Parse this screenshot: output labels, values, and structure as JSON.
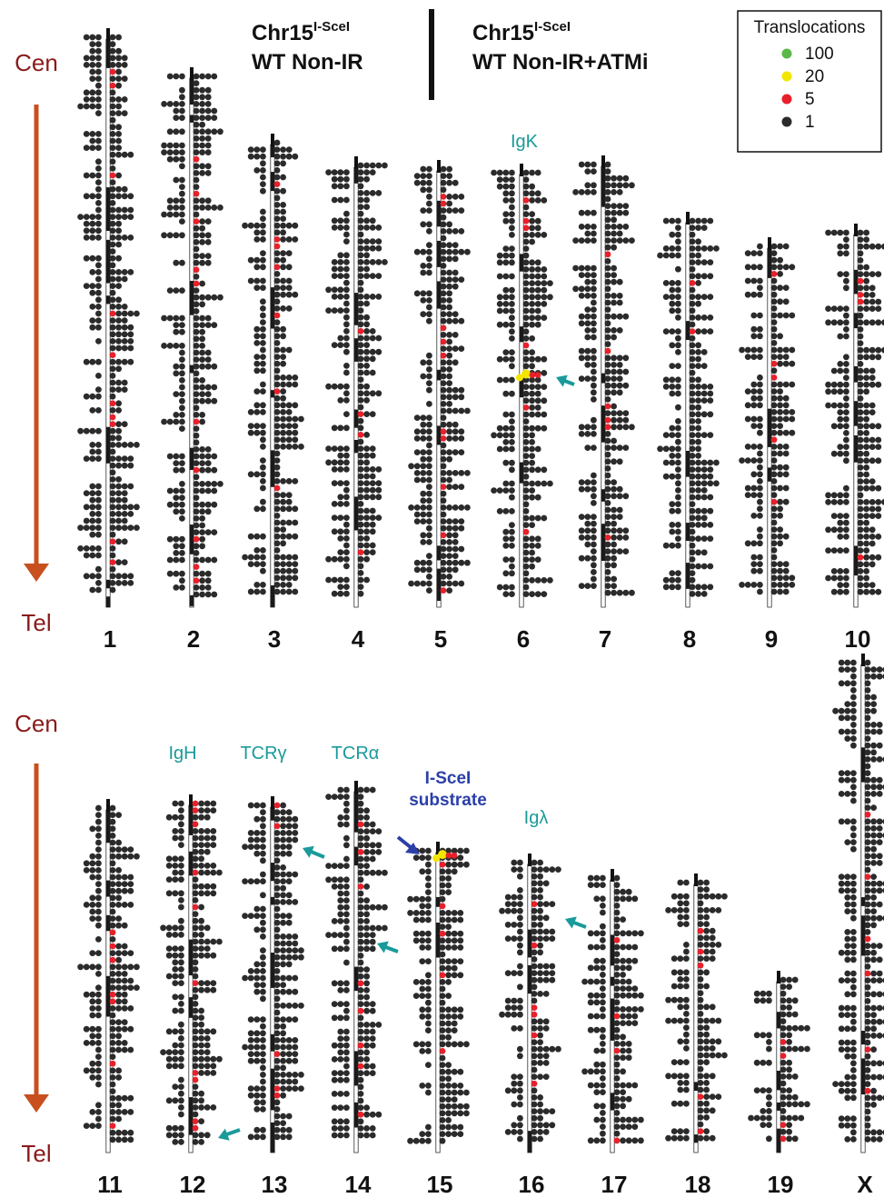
{
  "header": {
    "left": {
      "chr": "Chr15",
      "sup": "I-SceI",
      "line2": "WT Non-IR"
    },
    "right": {
      "chr": "Chr15",
      "sup": "I-SceI",
      "line2": "WT Non-IR+ATMi"
    }
  },
  "legend": {
    "title": "Translocations",
    "items": [
      {
        "label": "100",
        "color": "#5cb848"
      },
      {
        "label": "20",
        "color": "#f2e500"
      },
      {
        "label": "5",
        "color": "#e8202a"
      },
      {
        "label": "1",
        "color": "#2b2b2b"
      }
    ]
  },
  "axis": {
    "cen": "Cen",
    "tel": "Tel",
    "arrow_color": "#c8501e",
    "text_color": "#8b1a1a"
  },
  "annotation_color": "#1a9a9a",
  "marker_color": "#2b3fa8",
  "rows": [
    {
      "chromosomes": [
        {
          "label": "1",
          "len": 633
        },
        {
          "label": "2",
          "len": 590
        },
        {
          "label": "3",
          "len": 517
        },
        {
          "label": "4",
          "len": 492
        },
        {
          "label": "5",
          "len": 488
        },
        {
          "label": "6",
          "len": 484,
          "hotspot": {
            "color": "yellow",
            "at": 0.47
          }
        },
        {
          "label": "7",
          "len": 493
        },
        {
          "label": "8",
          "len": 431
        },
        {
          "label": "9",
          "len": 403
        },
        {
          "label": "10",
          "len": 418
        }
      ],
      "labels": [
        {
          "text": "IgK",
          "chrom": "6",
          "kind": "gene"
        }
      ]
    },
    {
      "chromosomes": [
        {
          "label": "11",
          "len": 385
        },
        {
          "label": "12",
          "len": 390
        },
        {
          "label": "13",
          "len": 388
        },
        {
          "label": "14",
          "len": 405
        },
        {
          "label": "15",
          "len": 338,
          "hotspot": {
            "color": "yellow",
            "at": 0.03
          }
        },
        {
          "label": "16",
          "len": 325
        },
        {
          "label": "17",
          "len": 308
        },
        {
          "label": "18",
          "len": 303
        },
        {
          "label": "19",
          "len": 196
        },
        {
          "label": "X",
          "len": 545
        }
      ],
      "labels": [
        {
          "text": "IgH",
          "chrom": "12",
          "kind": "gene"
        },
        {
          "text": "TCRγ",
          "chrom": "13",
          "kind": "gene"
        },
        {
          "text": "TCRα",
          "chrom": "14",
          "kind": "gene"
        },
        {
          "text": "I-SceI substrate",
          "chrom": "15",
          "kind": "substrate"
        },
        {
          "text": "Igλ",
          "chrom": "16",
          "kind": "gene"
        }
      ]
    }
  ]
}
